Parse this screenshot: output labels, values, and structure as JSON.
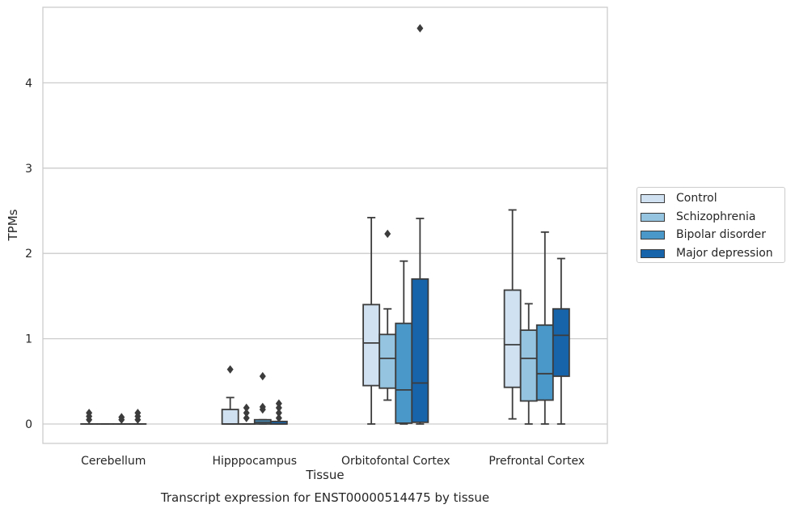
{
  "chart_data": {
    "type": "box",
    "title": "Transcript expression for ENST00000514475 by tissue",
    "xlabel": "Tissue",
    "ylabel": "TPMs",
    "ylim": [
      -0.22,
      4.9
    ],
    "yticks": [
      "0",
      "1",
      "2",
      "3",
      "4"
    ],
    "grid": true,
    "legend_position": "right",
    "categories": [
      "Cerebellum",
      "Hipppocampus",
      "Orbitofontal Cortex",
      "Prefrontal Cortex"
    ],
    "series": [
      {
        "name": "Control",
        "color": "#d0e1f2",
        "boxes": [
          {
            "min": 0,
            "q1": 0,
            "median": 0,
            "q3": 0,
            "max": 0,
            "outliers": [
              0.05,
              0.09,
              0.13
            ]
          },
          {
            "min": 0,
            "q1": 0,
            "median": 0,
            "q3": 0.17,
            "max": 0.31,
            "outliers": [
              0.64
            ]
          },
          {
            "min": 0,
            "q1": 0.45,
            "median": 0.95,
            "q3": 1.4,
            "max": 2.42,
            "outliers": []
          },
          {
            "min": 0.06,
            "q1": 0.43,
            "median": 0.93,
            "q3": 1.57,
            "max": 2.51,
            "outliers": []
          }
        ]
      },
      {
        "name": "Schizophrenia",
        "color": "#94c4df",
        "boxes": [
          {
            "min": 0,
            "q1": 0,
            "median": 0,
            "q3": 0,
            "max": 0,
            "outliers": []
          },
          {
            "min": 0,
            "q1": 0,
            "median": 0,
            "q3": 0,
            "max": 0,
            "outliers": [
              0.07,
              0.13,
              0.19
            ]
          },
          {
            "min": 0.28,
            "q1": 0.42,
            "median": 0.77,
            "q3": 1.05,
            "max": 1.35,
            "outliers": [
              2.23
            ]
          },
          {
            "min": 0,
            "q1": 0.27,
            "median": 0.77,
            "q3": 1.1,
            "max": 1.41,
            "outliers": []
          }
        ]
      },
      {
        "name": "Bipolar disorder",
        "color": "#4a98c9",
        "boxes": [
          {
            "min": 0,
            "q1": 0,
            "median": 0,
            "q3": 0,
            "max": 0,
            "outliers": [
              0.05,
              0.08
            ]
          },
          {
            "min": 0,
            "q1": 0,
            "median": 0.02,
            "q3": 0.05,
            "max": 0.05,
            "outliers": [
              0.17,
              0.2,
              0.56
            ]
          },
          {
            "min": 0,
            "q1": 0.01,
            "median": 0.4,
            "q3": 1.18,
            "max": 1.91,
            "outliers": []
          },
          {
            "min": 0,
            "q1": 0.28,
            "median": 0.59,
            "q3": 1.16,
            "max": 2.25,
            "outliers": []
          }
        ]
      },
      {
        "name": "Major depression",
        "color": "#1764ab",
        "boxes": [
          {
            "min": 0,
            "q1": 0,
            "median": 0,
            "q3": 0,
            "max": 0,
            "outliers": [
              0.05,
              0.09,
              0.13
            ]
          },
          {
            "min": 0,
            "q1": 0,
            "median": 0,
            "q3": 0.03,
            "max": 0.03,
            "outliers": [
              0.07,
              0.13,
              0.19,
              0.24
            ]
          },
          {
            "min": 0,
            "q1": 0.02,
            "median": 0.48,
            "q3": 1.7,
            "max": 2.41,
            "outliers": [
              4.64
            ]
          },
          {
            "min": 0,
            "q1": 0.56,
            "median": 1.04,
            "q3": 1.35,
            "max": 1.94,
            "outliers": []
          }
        ]
      }
    ]
  }
}
